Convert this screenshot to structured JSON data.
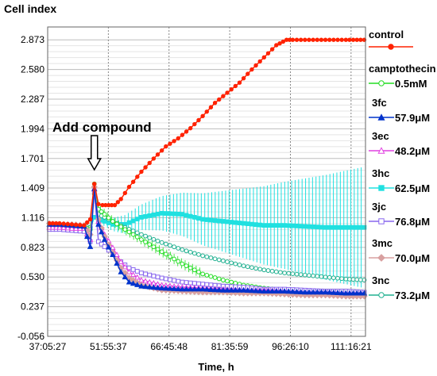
{
  "chart_data": {
    "type": "line",
    "ylabel": "Cell index",
    "xlabel": "Time, h",
    "annotation": "Add compound",
    "y_ticks": [
      "2.873",
      "2.580",
      "2.287",
      "1.994",
      "1.701",
      "1.409",
      "1.116",
      "0.823",
      "0.530",
      "0.237",
      "-0.056"
    ],
    "y_tick_values": [
      2.873,
      2.58,
      2.287,
      1.994,
      1.701,
      1.409,
      1.116,
      0.823,
      0.53,
      0.237,
      -0.056
    ],
    "x_ticks": [
      "37:05:27",
      "51:55:37",
      "66:45:48",
      "81:35:59",
      "96:26:10",
      "111:16:21"
    ],
    "x_tick_values": [
      37.09,
      51.93,
      66.76,
      81.6,
      96.44,
      111.27
    ],
    "ylim": [
      -0.056,
      3.0
    ],
    "xlim": [
      37.09,
      114.8
    ],
    "annotation_x": 48.5,
    "grid": true,
    "legend_position": "right",
    "series": [
      {
        "name": "control",
        "dose": "",
        "color": "#ff2200",
        "marker": "circle-filled",
        "x": [
          37.5,
          40,
          43,
          46,
          47.5,
          48.5,
          49.5,
          50.5,
          52,
          53.5,
          55,
          57,
          60,
          63,
          66,
          69,
          72,
          75,
          78,
          81,
          84,
          87,
          90,
          93,
          95.5,
          97,
          100,
          105,
          110,
          114.5
        ],
        "y": [
          1.06,
          1.06,
          1.05,
          1.04,
          1.1,
          1.45,
          1.25,
          1.24,
          1.24,
          1.24,
          1.3,
          1.42,
          1.57,
          1.7,
          1.82,
          1.9,
          2.0,
          2.12,
          2.25,
          2.35,
          2.45,
          2.58,
          2.7,
          2.82,
          2.873,
          2.873,
          2.873,
          2.873,
          2.873,
          2.873
        ]
      },
      {
        "name": "camptothecin",
        "dose": "0.5mM",
        "color": "#22dd22",
        "marker": "circle-open",
        "x": [
          37.5,
          40,
          43,
          46,
          47.5,
          48.5,
          49.5,
          51,
          53,
          56,
          60,
          65,
          70,
          75,
          80,
          85,
          90,
          95,
          100,
          105,
          110,
          114.5
        ],
        "y": [
          1.03,
          1.03,
          1.02,
          1.02,
          1.0,
          1.45,
          1.2,
          1.15,
          1.08,
          1.0,
          0.9,
          0.78,
          0.66,
          0.56,
          0.5,
          0.45,
          0.42,
          0.4,
          0.39,
          0.38,
          0.37,
          0.37
        ]
      },
      {
        "name": "3fc",
        "dose": "57.9μM",
        "color": "#0033cc",
        "marker": "triangle-filled",
        "x": [
          37.5,
          40,
          43,
          46,
          47.5,
          48.5,
          49.5,
          51,
          53,
          55,
          57,
          60,
          65,
          70,
          75,
          80,
          85,
          90,
          95,
          100,
          105,
          110,
          114.5
        ],
        "y": [
          1.05,
          1.05,
          1.04,
          1.03,
          0.83,
          1.4,
          1.05,
          0.9,
          0.75,
          0.58,
          0.48,
          0.44,
          0.42,
          0.41,
          0.41,
          0.4,
          0.4,
          0.39,
          0.39,
          0.38,
          0.38,
          0.37,
          0.37
        ]
      },
      {
        "name": "3ec",
        "dose": "48.2μM",
        "color": "#e040e0",
        "marker": "triangle-open",
        "x": [
          37.5,
          40,
          43,
          46,
          47.5,
          48.5,
          49.5,
          51,
          53,
          55,
          57,
          60,
          65,
          70,
          75,
          80,
          85,
          90,
          95,
          100,
          105,
          110,
          114.5
        ],
        "y": [
          1.02,
          1.02,
          1.01,
          1.01,
          0.9,
          1.4,
          1.08,
          0.95,
          0.82,
          0.68,
          0.58,
          0.5,
          0.45,
          0.43,
          0.42,
          0.41,
          0.4,
          0.4,
          0.39,
          0.38,
          0.38,
          0.37,
          0.37
        ]
      },
      {
        "name": "3hc",
        "dose": "62.5μM",
        "color": "#20e0e0",
        "marker": "square-filled",
        "x": [
          37.5,
          40,
          43,
          46,
          47.5,
          48.5,
          49.5,
          51,
          53,
          56,
          60,
          65,
          70,
          75,
          80,
          85,
          90,
          95,
          100,
          105,
          110,
          114.5
        ],
        "y": [
          1.02,
          1.02,
          1.01,
          1.0,
          1.01,
          1.12,
          1.1,
          1.08,
          1.05,
          1.05,
          1.12,
          1.16,
          1.15,
          1.1,
          1.08,
          1.06,
          1.04,
          1.04,
          1.03,
          1.02,
          1.02,
          1.02
        ]
      },
      {
        "name": "3jc",
        "dose": "76.8μM",
        "color": "#8866ee",
        "marker": "square-open",
        "x": [
          37.5,
          40,
          43,
          46,
          47.5,
          48.5,
          49.5,
          51,
          53,
          55,
          57,
          60,
          65,
          70,
          75,
          80,
          85,
          90,
          95,
          100,
          105,
          110,
          114.5
        ],
        "y": [
          1.0,
          1.0,
          0.99,
          0.98,
          0.88,
          1.38,
          0.88,
          0.83,
          0.76,
          0.68,
          0.62,
          0.57,
          0.52,
          0.48,
          0.46,
          0.44,
          0.43,
          0.41,
          0.41,
          0.4,
          0.39,
          0.39,
          0.38
        ]
      },
      {
        "name": "3mc",
        "dose": "70.0μM",
        "color": "#d8a0a0",
        "marker": "diamond-filled",
        "x": [
          37.5,
          40,
          43,
          46,
          47.5,
          48.5,
          49.5,
          51,
          53,
          55,
          57,
          60,
          65,
          70,
          75,
          80,
          85,
          90,
          95,
          100,
          105,
          110,
          114.5
        ],
        "y": [
          1.06,
          1.05,
          1.05,
          1.04,
          0.95,
          1.42,
          1.1,
          0.93,
          0.77,
          0.62,
          0.52,
          0.45,
          0.4,
          0.39,
          0.38,
          0.38,
          0.37,
          0.37,
          0.36,
          0.35,
          0.35,
          0.34,
          0.34
        ]
      },
      {
        "name": "3nc",
        "dose": "73.2μM",
        "color": "#20b090",
        "marker": "circle-open",
        "x": [
          37.5,
          40,
          43,
          46,
          47.5,
          48.5,
          49.5,
          51,
          53,
          56,
          60,
          65,
          70,
          75,
          80,
          85,
          90,
          95,
          100,
          105,
          110,
          114.5
        ],
        "y": [
          1.04,
          1.04,
          1.03,
          1.03,
          1.02,
          1.35,
          1.15,
          1.12,
          1.08,
          1.02,
          0.95,
          0.87,
          0.8,
          0.74,
          0.69,
          0.64,
          0.6,
          0.57,
          0.55,
          0.53,
          0.51,
          0.5
        ]
      }
    ]
  }
}
